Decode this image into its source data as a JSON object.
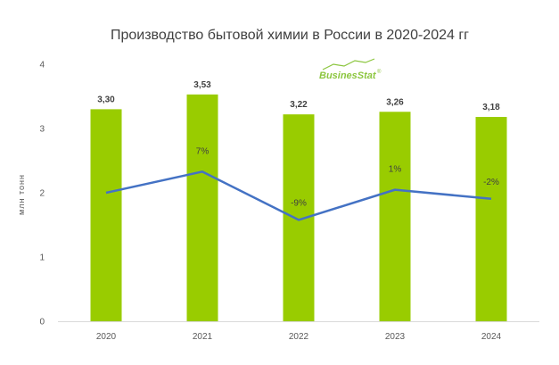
{
  "chart_data": {
    "type": "bar",
    "title": "Производство бытовой химии в России в 2020-2024 гг",
    "ylabel": "млн тонн",
    "xlabel": "",
    "ylim": [
      0,
      4
    ],
    "yticks": [
      "0",
      "1",
      "2",
      "3",
      "4"
    ],
    "categories": [
      "2020",
      "2021",
      "2022",
      "2023",
      "2024"
    ],
    "values": [
      3.3,
      3.53,
      3.22,
      3.26,
      3.18
    ],
    "value_labels": [
      "3,30",
      "3,53",
      "3,22",
      "3,26",
      "3,18"
    ],
    "bar_color": "#99cc00",
    "gridlines": false,
    "line_series": {
      "type": "line",
      "color": "#4472c4",
      "values": [
        null,
        7,
        -9,
        1,
        -2
      ],
      "labels": [
        "",
        "7%",
        "-9%",
        "1%",
        "-2%"
      ],
      "secondary_axis_visible": false
    }
  },
  "logo": {
    "text": "BusinesStat",
    "mark": "®",
    "color": "#8cc63f"
  }
}
